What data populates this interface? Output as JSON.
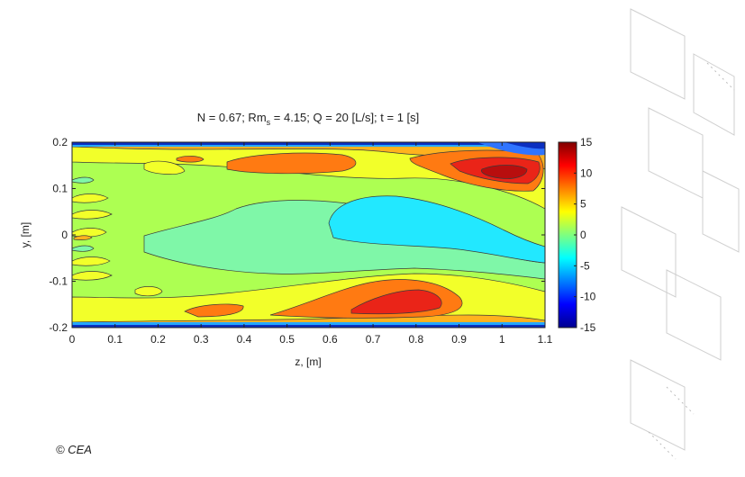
{
  "credit": "© CEA",
  "chart_data": {
    "type": "heatmap",
    "plot_style": "filled-contour",
    "title_parts": {
      "prefix": "N = 0.67; Rm",
      "subscript": "s",
      "suffix": " = 4.15; Q = 20 [L/s]; t = 1 [s]"
    },
    "xlabel": "z, [m]",
    "ylabel": "y, [m]",
    "xlim": [
      0,
      1.1
    ],
    "ylim": [
      -0.2,
      0.2
    ],
    "x_ticks": [
      "0",
      "0.1",
      "0.2",
      "0.3",
      "0.4",
      "0.5",
      "0.6",
      "0.7",
      "0.8",
      "0.9",
      "1",
      "1.1"
    ],
    "y_ticks": [
      "0.2",
      "0.1",
      "0",
      "-0.1",
      "-0.2"
    ],
    "colorbar": {
      "range": [
        -15,
        15
      ],
      "ticks": [
        "15",
        "10",
        "5",
        "0",
        "-5",
        "-10",
        "-15"
      ],
      "colormap": "jet"
    },
    "field_features": [
      {
        "kind": "max",
        "z": 0.5,
        "y": 0.14,
        "value": 9
      },
      {
        "kind": "max",
        "z": 1.0,
        "y": 0.12,
        "value": 13
      },
      {
        "kind": "max",
        "z": 0.78,
        "y": -0.13,
        "value": 11
      },
      {
        "kind": "max",
        "z": 0.3,
        "y": -0.14,
        "value": 7
      },
      {
        "kind": "min",
        "z": 0.92,
        "y": 0.02,
        "value": -4
      },
      {
        "kind": "min",
        "z": 0.45,
        "y": 0.02,
        "value": -1
      },
      {
        "kind": "min",
        "z": 1.05,
        "y": 0.195,
        "value": -10
      },
      {
        "kind": "min",
        "z": 0.55,
        "y": 0.2,
        "value": -12
      },
      {
        "kind": "min",
        "z": 0.55,
        "y": -0.2,
        "value": -13
      }
    ]
  }
}
